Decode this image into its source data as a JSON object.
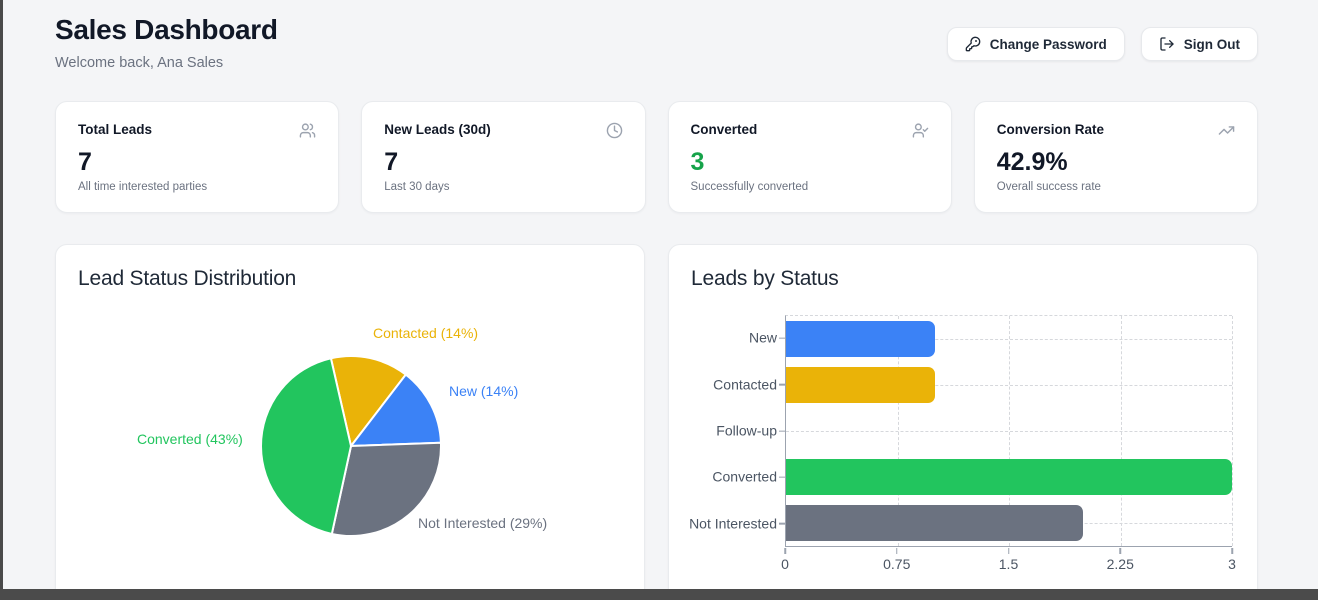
{
  "app": {
    "title": "Sales Dashboard",
    "subtitle": "Welcome back, Ana Sales"
  },
  "header": {
    "change_password_label": "Change Password",
    "sign_out_label": "Sign Out"
  },
  "stats": [
    {
      "title": "Total Leads",
      "icon": "users-icon",
      "value": "7",
      "subtitle": "All time interested parties",
      "value_color": "#111827"
    },
    {
      "title": "New Leads (30d)",
      "icon": "clock-icon",
      "value": "7",
      "subtitle": "Last 30 days",
      "value_color": "#111827"
    },
    {
      "title": "Converted",
      "icon": "user-check-icon",
      "value": "3",
      "subtitle": "Successfully converted",
      "value_color": "#16a34a"
    },
    {
      "title": "Conversion Rate",
      "icon": "trending-up-icon",
      "value": "42.9%",
      "subtitle": "Overall success rate",
      "value_color": "#111827"
    }
  ],
  "colors": {
    "background": "#f4f5f7",
    "card": "#ffffff",
    "accent_green": "#16a34a",
    "axis": "#9ca3af",
    "grid": "#d6d8dc",
    "window_edge": "#4a4a4a"
  },
  "chart_data": [
    {
      "type": "pie",
      "title": "Lead Status Distribution",
      "start_angle_deg": -12.9,
      "direction": "clockwise",
      "legend_position": "none",
      "slices": [
        {
          "label": "Contacted",
          "pct": 14,
          "value": 1,
          "color": "#eab308",
          "label_text": "Contacted (14%)"
        },
        {
          "label": "New",
          "pct": 14,
          "value": 1,
          "color": "#3b82f6",
          "label_text": "New (14%)"
        },
        {
          "label": "Not Interested",
          "pct": 29,
          "value": 2,
          "color": "#6b7280",
          "label_text": "Not Interested (29%)"
        },
        {
          "label": "Converted",
          "pct": 43,
          "value": 3,
          "color": "#22c55e",
          "label_text": "Converted (43%)"
        }
      ]
    },
    {
      "type": "bar",
      "title": "Leads by Status",
      "orientation": "horizontal",
      "categories": [
        "New",
        "Contacted",
        "Follow-up",
        "Converted",
        "Not Interested"
      ],
      "values": [
        1,
        1,
        0,
        3,
        2
      ],
      "colors": [
        "#3b82f6",
        "#eab308",
        "#9ca3af",
        "#22c55e",
        "#6b7280"
      ],
      "xlim": [
        0,
        3
      ],
      "x_ticks": [
        0,
        0.75,
        1.5,
        2.25,
        3
      ],
      "grid": "dashed",
      "xlabel": "",
      "ylabel": ""
    }
  ]
}
